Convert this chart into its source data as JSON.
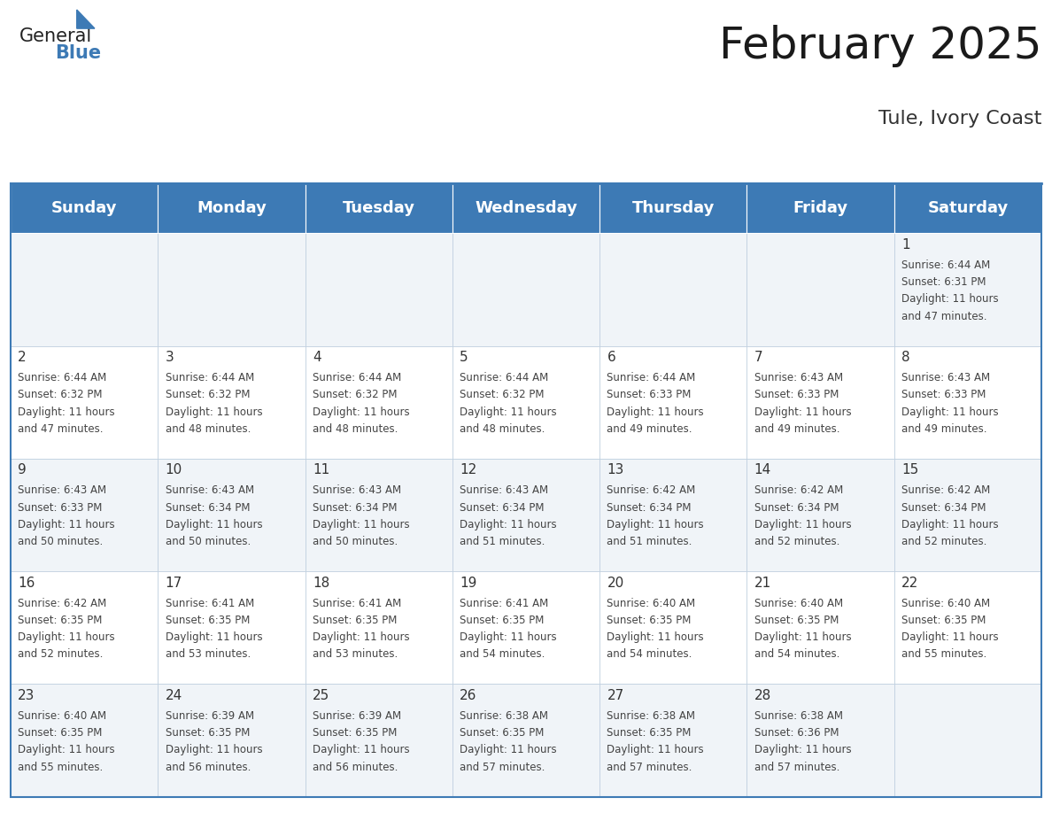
{
  "title": "February 2025",
  "subtitle": "Tule, Ivory Coast",
  "header_bg": "#3d7ab5",
  "header_text_color": "#ffffff",
  "cell_bg_even": "#f0f4f8",
  "cell_bg_odd": "#ffffff",
  "day_headers": [
    "Sunday",
    "Monday",
    "Tuesday",
    "Wednesday",
    "Thursday",
    "Friday",
    "Saturday"
  ],
  "title_fontsize": 36,
  "subtitle_fontsize": 16,
  "header_fontsize": 13,
  "day_num_fontsize": 11,
  "cell_text_fontsize": 8.5,
  "calendar_data": [
    [
      null,
      null,
      null,
      null,
      null,
      null,
      {
        "day": 1,
        "sunrise": "6:44 AM",
        "sunset": "6:31 PM",
        "daylight_hours": 11,
        "daylight_minutes": 47
      }
    ],
    [
      {
        "day": 2,
        "sunrise": "6:44 AM",
        "sunset": "6:32 PM",
        "daylight_hours": 11,
        "daylight_minutes": 47
      },
      {
        "day": 3,
        "sunrise": "6:44 AM",
        "sunset": "6:32 PM",
        "daylight_hours": 11,
        "daylight_minutes": 48
      },
      {
        "day": 4,
        "sunrise": "6:44 AM",
        "sunset": "6:32 PM",
        "daylight_hours": 11,
        "daylight_minutes": 48
      },
      {
        "day": 5,
        "sunrise": "6:44 AM",
        "sunset": "6:32 PM",
        "daylight_hours": 11,
        "daylight_minutes": 48
      },
      {
        "day": 6,
        "sunrise": "6:44 AM",
        "sunset": "6:33 PM",
        "daylight_hours": 11,
        "daylight_minutes": 49
      },
      {
        "day": 7,
        "sunrise": "6:43 AM",
        "sunset": "6:33 PM",
        "daylight_hours": 11,
        "daylight_minutes": 49
      },
      {
        "day": 8,
        "sunrise": "6:43 AM",
        "sunset": "6:33 PM",
        "daylight_hours": 11,
        "daylight_minutes": 49
      }
    ],
    [
      {
        "day": 9,
        "sunrise": "6:43 AM",
        "sunset": "6:33 PM",
        "daylight_hours": 11,
        "daylight_minutes": 50
      },
      {
        "day": 10,
        "sunrise": "6:43 AM",
        "sunset": "6:34 PM",
        "daylight_hours": 11,
        "daylight_minutes": 50
      },
      {
        "day": 11,
        "sunrise": "6:43 AM",
        "sunset": "6:34 PM",
        "daylight_hours": 11,
        "daylight_minutes": 50
      },
      {
        "day": 12,
        "sunrise": "6:43 AM",
        "sunset": "6:34 PM",
        "daylight_hours": 11,
        "daylight_minutes": 51
      },
      {
        "day": 13,
        "sunrise": "6:42 AM",
        "sunset": "6:34 PM",
        "daylight_hours": 11,
        "daylight_minutes": 51
      },
      {
        "day": 14,
        "sunrise": "6:42 AM",
        "sunset": "6:34 PM",
        "daylight_hours": 11,
        "daylight_minutes": 52
      },
      {
        "day": 15,
        "sunrise": "6:42 AM",
        "sunset": "6:34 PM",
        "daylight_hours": 11,
        "daylight_minutes": 52
      }
    ],
    [
      {
        "day": 16,
        "sunrise": "6:42 AM",
        "sunset": "6:35 PM",
        "daylight_hours": 11,
        "daylight_minutes": 52
      },
      {
        "day": 17,
        "sunrise": "6:41 AM",
        "sunset": "6:35 PM",
        "daylight_hours": 11,
        "daylight_minutes": 53
      },
      {
        "day": 18,
        "sunrise": "6:41 AM",
        "sunset": "6:35 PM",
        "daylight_hours": 11,
        "daylight_minutes": 53
      },
      {
        "day": 19,
        "sunrise": "6:41 AM",
        "sunset": "6:35 PM",
        "daylight_hours": 11,
        "daylight_minutes": 54
      },
      {
        "day": 20,
        "sunrise": "6:40 AM",
        "sunset": "6:35 PM",
        "daylight_hours": 11,
        "daylight_minutes": 54
      },
      {
        "day": 21,
        "sunrise": "6:40 AM",
        "sunset": "6:35 PM",
        "daylight_hours": 11,
        "daylight_minutes": 54
      },
      {
        "day": 22,
        "sunrise": "6:40 AM",
        "sunset": "6:35 PM",
        "daylight_hours": 11,
        "daylight_minutes": 55
      }
    ],
    [
      {
        "day": 23,
        "sunrise": "6:40 AM",
        "sunset": "6:35 PM",
        "daylight_hours": 11,
        "daylight_minutes": 55
      },
      {
        "day": 24,
        "sunrise": "6:39 AM",
        "sunset": "6:35 PM",
        "daylight_hours": 11,
        "daylight_minutes": 56
      },
      {
        "day": 25,
        "sunrise": "6:39 AM",
        "sunset": "6:35 PM",
        "daylight_hours": 11,
        "daylight_minutes": 56
      },
      {
        "day": 26,
        "sunrise": "6:38 AM",
        "sunset": "6:35 PM",
        "daylight_hours": 11,
        "daylight_minutes": 57
      },
      {
        "day": 27,
        "sunrise": "6:38 AM",
        "sunset": "6:35 PM",
        "daylight_hours": 11,
        "daylight_minutes": 57
      },
      {
        "day": 28,
        "sunrise": "6:38 AM",
        "sunset": "6:36 PM",
        "daylight_hours": 11,
        "daylight_minutes": 57
      },
      null
    ]
  ],
  "logo_text_general": "General",
  "logo_text_blue": "Blue",
  "logo_color_general": "#222222",
  "logo_color_blue": "#3d7ab5",
  "border_color": "#3d7ab5",
  "line_color": "#bbccdd"
}
